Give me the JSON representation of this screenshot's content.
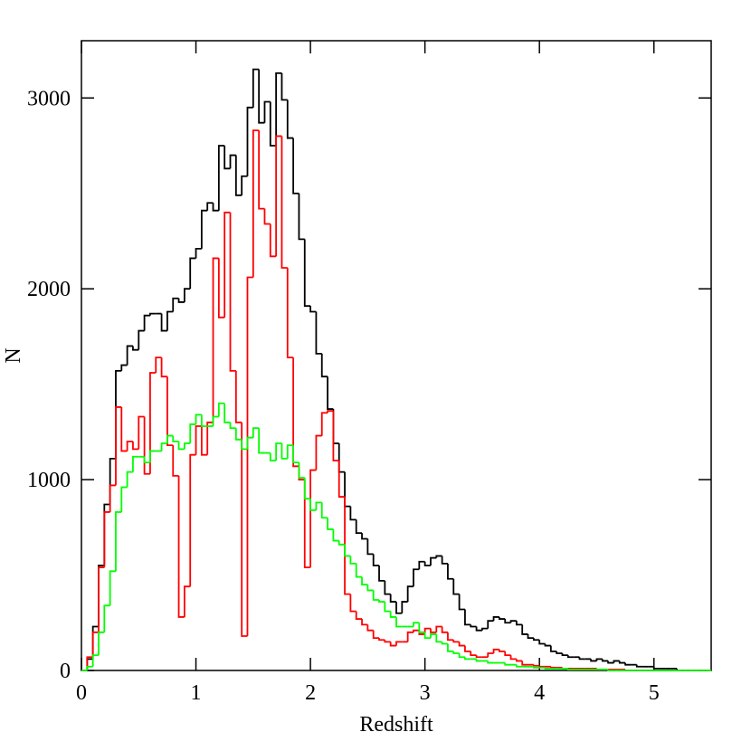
{
  "chart_data": {
    "type": "histogram",
    "xlabel": "Redshift",
    "ylabel": "N",
    "bins": [
      0,
      0.05,
      0.1,
      0.15,
      0.2,
      0.25,
      0.3,
      0.35,
      0.4,
      0.45,
      0.5,
      0.55,
      0.6,
      0.65,
      0.7,
      0.75,
      0.8,
      0.85,
      0.9,
      0.95,
      1,
      1.05,
      1.1,
      1.15,
      1.2,
      1.25,
      1.3,
      1.35,
      1.4,
      1.45,
      1.5,
      1.55,
      1.6,
      1.65,
      1.7,
      1.75,
      1.8,
      1.85,
      1.9,
      1.95,
      2,
      2.05,
      2.1,
      2.15,
      2.2,
      2.25,
      2.3,
      2.35,
      2.4,
      2.45,
      2.5,
      2.55,
      2.6,
      2.65,
      2.7,
      2.75,
      2.8,
      2.85,
      2.9,
      2.95,
      3,
      3.05,
      3.1,
      3.15,
      3.2,
      3.25,
      3.3,
      3.35,
      3.4,
      3.45,
      3.5,
      3.55,
      3.6,
      3.65,
      3.7,
      3.75,
      3.8,
      3.85,
      3.9,
      3.95,
      4,
      4.05,
      4.1,
      4.15,
      4.2,
      4.25,
      4.3,
      4.35,
      4.4,
      4.45,
      4.5,
      4.55,
      4.6,
      4.65,
      4.7,
      4.75,
      4.8,
      4.85,
      4.9,
      4.95,
      5,
      5.05,
      5.1,
      5.15,
      5.2,
      5.25,
      5.3,
      5.35,
      5.4,
      5.45,
      5.5
    ],
    "series": [
      {
        "color": "#000000",
        "values": [
          0,
          60,
          230,
          550,
          870,
          1110,
          1570,
          1600,
          1700,
          1680,
          1780,
          1860,
          1870,
          1870,
          1780,
          1880,
          1950,
          1930,
          2000,
          2160,
          2210,
          2410,
          2450,
          2410,
          2750,
          2630,
          2700,
          2490,
          2590,
          2950,
          3150,
          2870,
          2980,
          2750,
          3130,
          2990,
          2790,
          2500,
          2260,
          1910,
          1880,
          1660,
          1540,
          1370,
          1190,
          1040,
          860,
          790,
          720,
          690,
          610,
          550,
          470,
          400,
          360,
          300,
          360,
          440,
          530,
          570,
          550,
          590,
          600,
          560,
          480,
          400,
          320,
          240,
          230,
          210,
          220,
          260,
          280,
          270,
          250,
          260,
          240,
          190,
          170,
          160,
          140,
          130,
          100,
          90,
          80,
          70,
          70,
          60,
          60,
          50,
          60,
          50,
          40,
          50,
          40,
          30,
          30,
          20,
          20,
          20,
          10,
          10,
          10,
          10,
          0,
          0,
          0,
          0,
          0,
          0
        ]
      },
      {
        "color": "#ff0000",
        "values": [
          0,
          70,
          200,
          540,
          830,
          970,
          1380,
          1150,
          1200,
          1160,
          1330,
          1030,
          1560,
          1640,
          1540,
          1180,
          1020,
          280,
          440,
          1130,
          1280,
          1130,
          1300,
          2160,
          1850,
          2400,
          1570,
          1300,
          180,
          2060,
          2830,
          2420,
          2340,
          2170,
          2800,
          2110,
          1640,
          1070,
          1000,
          540,
          1050,
          1230,
          1350,
          1360,
          1100,
          910,
          400,
          310,
          270,
          240,
          210,
          170,
          160,
          150,
          130,
          150,
          150,
          200,
          210,
          190,
          220,
          200,
          230,
          200,
          160,
          150,
          130,
          100,
          80,
          70,
          70,
          90,
          110,
          100,
          80,
          60,
          50,
          30,
          30,
          25,
          20,
          20,
          15,
          15,
          10,
          10,
          10,
          10,
          10,
          10,
          5,
          5,
          5,
          5,
          5,
          0,
          0,
          0,
          0,
          0,
          0,
          0,
          0,
          0,
          0,
          0,
          0,
          0,
          0,
          0
        ]
      },
      {
        "color": "#00ff00",
        "values": [
          0,
          20,
          80,
          200,
          340,
          520,
          830,
          960,
          1040,
          1120,
          1120,
          1090,
          1150,
          1150,
          1190,
          1230,
          1200,
          1160,
          1190,
          1290,
          1340,
          1280,
          1280,
          1330,
          1400,
          1300,
          1270,
          1210,
          1160,
          1220,
          1270,
          1140,
          1140,
          1100,
          1190,
          1110,
          1180,
          1090,
          1010,
          900,
          840,
          880,
          800,
          740,
          680,
          660,
          600,
          560,
          490,
          450,
          420,
          370,
          360,
          310,
          280,
          230,
          230,
          230,
          250,
          200,
          170,
          190,
          150,
          140,
          100,
          90,
          70,
          60,
          60,
          50,
          50,
          40,
          40,
          40,
          30,
          30,
          20,
          20,
          20,
          15,
          15,
          10,
          10,
          10,
          10,
          5,
          5,
          5,
          5,
          5,
          5,
          5,
          0,
          0,
          0,
          0,
          0,
          0,
          0,
          0,
          0,
          0,
          0,
          0,
          0,
          0,
          0,
          0,
          0,
          0
        ]
      }
    ],
    "xlim": [
      0,
      5.5
    ],
    "ylim": [
      0,
      3300
    ],
    "xticks": [
      0,
      1,
      2,
      3,
      4,
      5
    ],
    "yticks": [
      0,
      1000,
      2000,
      3000
    ]
  }
}
